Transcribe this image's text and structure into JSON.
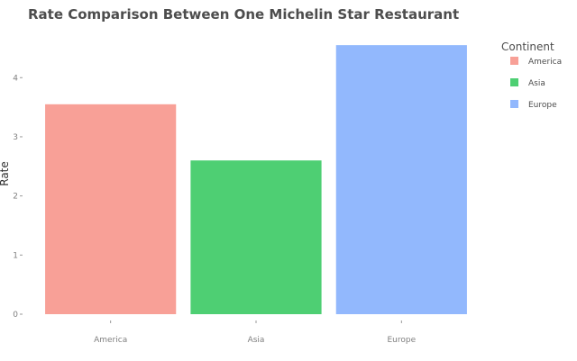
{
  "chart_data": {
    "type": "bar",
    "title": "Rate Comparison Between One Michelin Star Restaurant",
    "xlabel": "",
    "ylabel": "Rate",
    "categories": [
      "America",
      "Asia",
      "Europe"
    ],
    "values": [
      3.55,
      2.6,
      4.55
    ],
    "ylim": [
      0,
      4.75
    ],
    "yticks": [
      0,
      1,
      2,
      3,
      4
    ],
    "grid": false,
    "legend": {
      "title": "Continent",
      "placement": "right",
      "entries": [
        "America",
        "Asia",
        "Europe"
      ]
    },
    "colors": {
      "America": "#f8a097",
      "Asia": "#4ecf73",
      "Europe": "#92b8fd"
    }
  }
}
